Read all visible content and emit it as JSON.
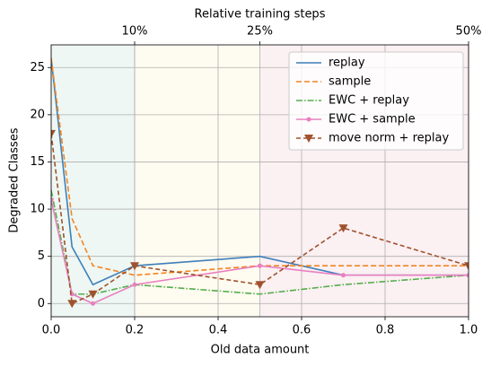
{
  "chart_data": {
    "type": "line",
    "xlabel": "Old data amount",
    "ylabel": "Degraded Classes",
    "top_axis_label": "Relative training steps",
    "x": [
      0,
      0.05,
      0.1,
      0.2,
      0.5,
      0.7,
      1.0
    ],
    "xlim": [
      0,
      1.0
    ],
    "ylim": [
      -1.4,
      27.4
    ],
    "xticks": [
      {
        "value": 0,
        "label": "0.0"
      },
      0.2,
      0.4,
      0.6,
      0.8,
      {
        "value": 1.0,
        "label": "1.0"
      }
    ],
    "yticks": [
      0,
      5,
      10,
      15,
      20,
      25
    ],
    "top_xticks": [
      {
        "value": 0.2,
        "label": "10%"
      },
      {
        "value": 0.5,
        "label": "25%"
      },
      {
        "value": 1.0,
        "label": "50%"
      }
    ],
    "grid": true,
    "legend": "upper right",
    "regions": [
      {
        "x": [
          0,
          0.2
        ],
        "color": "#eef7f3"
      },
      {
        "x": [
          0.2,
          0.5
        ],
        "color": "#fefbf0"
      },
      {
        "x": [
          0.5,
          1.0
        ],
        "color": "#fbf0f2"
      }
    ],
    "series": [
      {
        "name": "replay",
        "color": "#3e7fba",
        "dash": "",
        "marker": "",
        "values": [
          26,
          6,
          2,
          4,
          5,
          3,
          3
        ]
      },
      {
        "name": "sample",
        "color": "#f28522",
        "dash": "6,3",
        "marker": "",
        "values": [
          26,
          9,
          4,
          3,
          4,
          4,
          4
        ]
      },
      {
        "name": "EWC + replay",
        "color": "#55ad4b",
        "dash": "7,2,1.5,2",
        "marker": "",
        "values": [
          12,
          1,
          1,
          2,
          1,
          2,
          3
        ]
      },
      {
        "name": "EWC + sample",
        "color": "#e97fc0",
        "dash": "",
        "marker": "circle",
        "values": [
          11,
          1,
          0,
          2,
          4,
          3,
          3
        ]
      },
      {
        "name": "move norm + replay",
        "color": "#a0522d",
        "dash": "5,3",
        "marker": "triangle",
        "values": [
          18,
          0,
          1,
          4,
          2,
          8,
          4
        ]
      }
    ]
  }
}
